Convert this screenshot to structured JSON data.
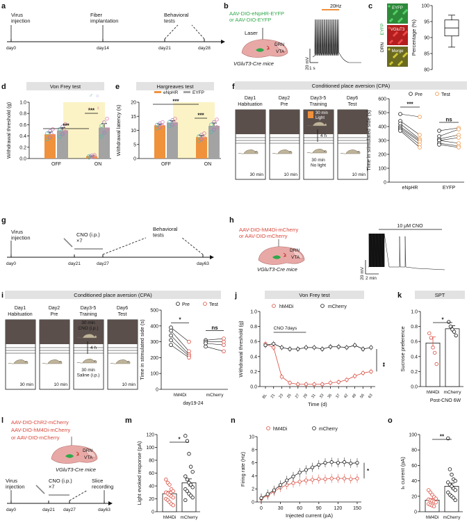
{
  "colors": {
    "orange": "#F0913C",
    "grey": "#A3A3A3",
    "red": "#D9483B",
    "green": "#2FA84A",
    "yellow": "#FBF3C6",
    "teal": "#58B7A8",
    "purple": "#9A7CC4",
    "pink": "#E07AB3",
    "cream": "#FFF6DA",
    "mouse": "#BFB49A"
  },
  "panels": [
    "a",
    "b",
    "c",
    "d",
    "e",
    "f",
    "g",
    "h",
    "i",
    "j",
    "k",
    "l",
    "m",
    "n",
    "o"
  ],
  "a": {
    "labels": [
      "Virus\ninjection",
      "Fiber\nimplantation",
      "Behavioral\ntests"
    ],
    "days": [
      "day0",
      "day14",
      "day21",
      "day28"
    ]
  },
  "b": {
    "virus1": "AAV-DIO-eNpHR-EYFP",
    "virus2": "or AAV-DIO-EYFP",
    "laser": "Laser",
    "drn": "DRN",
    "vta": "VTA",
    "mice": "VGluT3-Cre mice",
    "freq": "20Hz",
    "scale_v": "20 mV",
    "scale_t": "1 s"
  },
  "c": {
    "side": "DRN",
    "eyfp": "EYFP",
    "tiles": [
      "EYFP",
      "VGluT3",
      "Merge"
    ],
    "ylabel": "Percentage (%)",
    "ticks": [
      "80",
      "85",
      "90",
      "95",
      "100"
    ],
    "box": {
      "min": 87,
      "q1": 90.5,
      "median": 93,
      "q3": 95.5,
      "max": 97
    },
    "ylim": [
      80,
      100
    ]
  },
  "d": {
    "title": "Von Frey test",
    "ylabel": "Withdrawal threshold (g)",
    "yticks": [
      "0.0",
      "0.2",
      "0.4",
      "0.6",
      "0.8",
      "1.0"
    ],
    "xlabels": [
      "OFF",
      "ON"
    ],
    "sig": [
      "***",
      "***"
    ],
    "sex": [
      "♂",
      "○",
      "○",
      "♀"
    ],
    "ylim": [
      0,
      1.0
    ],
    "chart_data": {
      "type": "bar",
      "categories": [
        "OFF",
        "ON"
      ],
      "series": [
        {
          "name": "eNpHR",
          "values": [
            0.43,
            0.04
          ],
          "err": [
            0.04,
            0.01
          ]
        },
        {
          "name": "EYFP",
          "values": [
            0.5,
            0.55
          ],
          "err": [
            0.05,
            0.07
          ]
        }
      ]
    }
  },
  "e": {
    "title": "Hargreaves test",
    "ylabel": "Withdrawal latency (s)",
    "yticks": [
      "0",
      "5",
      "10",
      "15",
      "20"
    ],
    "xlabels": [
      "OFF",
      "ON"
    ],
    "legend": [
      "eNpHR",
      "EYFP"
    ],
    "sig": [
      "***",
      "***"
    ],
    "ylim": [
      0,
      20
    ],
    "chart_data": {
      "type": "bar",
      "categories": [
        "OFF",
        "ON"
      ],
      "series": [
        {
          "name": "eNpHR",
          "values": [
            11.8,
            7.6
          ],
          "err": [
            0.5,
            0.6
          ]
        },
        {
          "name": "EYFP",
          "values": [
            12.8,
            11.6
          ],
          "err": [
            0.6,
            1.0
          ]
        }
      ]
    }
  },
  "f": {
    "title": "Conditioned place aversion (CPA)",
    "days": [
      {
        "name": "Day1",
        "sub": "Habituation",
        "time": "30 min"
      },
      {
        "name": "Day2",
        "sub": "Pre",
        "time": "10 min"
      },
      {
        "name": "Day3-5",
        "sub": "Training",
        "time": ""
      },
      {
        "name": "Day6",
        "sub": "Test",
        "time": "10 min"
      }
    ],
    "light": "30 min\nLight",
    "gap": "4 h",
    "nolight": "30 min\nNo light",
    "legend": [
      "Pre",
      "Test"
    ],
    "ylabel": "Time in stimulated side (s)",
    "yticks": [
      "0",
      "100",
      "200",
      "300",
      "400",
      "500",
      "600"
    ],
    "xlabels": [
      "eNpHR",
      "EYFP"
    ],
    "sig": [
      "***",
      "ns"
    ],
    "ylim": [
      0,
      600
    ],
    "chart_data": {
      "type": "scatter",
      "groups": [
        {
          "name": "eNpHR",
          "pre": [
            490,
            440,
            420,
            400,
            390,
            380,
            370
          ],
          "test": [
            470,
            340,
            310,
            300,
            290,
            270,
            250
          ]
        },
        {
          "name": "EYFP",
          "pre": [
            370,
            330,
            310,
            300,
            300,
            280,
            270
          ],
          "test": [
            390,
            380,
            340,
            320,
            280,
            260,
            250
          ]
        }
      ]
    }
  },
  "g": {
    "labels": [
      "Virus\ninjection",
      "CNO (i.p.)\n×7",
      "Behavioral\ntests"
    ],
    "days": [
      "day0",
      "day21",
      "day27",
      "day63"
    ]
  },
  "h": {
    "virus1": "AAV-DIO-hM4Di-mCherry",
    "virus2": "or AAV-DIO-mCherry",
    "drn": "DRN",
    "vta": "VTA",
    "mice": "VGluT3-Cre mice",
    "cno": "10 μM CNO",
    "scale_v": "20 mV",
    "scale_t": "2 min"
  },
  "i": {
    "title": "Conditioned place aversion (CPA)",
    "days": [
      {
        "name": "Day1",
        "sub": "Habituation",
        "time": "30 min"
      },
      {
        "name": "Day2",
        "sub": "Pre",
        "time": "10 min"
      },
      {
        "name": "Day3-5",
        "sub": "Training",
        "time": ""
      },
      {
        "name": "Day6",
        "sub": "Test",
        "time": "10 min"
      }
    ],
    "cno": "30 min\nCNO (i.p.)",
    "gap": "4 h",
    "saline": "30 min\nSaline (i.p.)",
    "legend": [
      "Pre",
      "Test"
    ],
    "ylabel": "Time in stimulated side (s)",
    "yticks": [
      "0",
      "100",
      "200",
      "300",
      "400",
      "500"
    ],
    "xlabels": [
      "hM4Di",
      "mCherry"
    ],
    "sub": "day19-24",
    "sig": [
      "*",
      "ns"
    ],
    "ylim": [
      0,
      500
    ],
    "chart_data": {
      "type": "scatter",
      "groups": [
        {
          "name": "hM4Di",
          "pre": [
            390,
            370,
            340,
            310,
            280
          ],
          "test": [
            300,
            240,
            220,
            210,
            200
          ]
        },
        {
          "name": "mCherry",
          "pre": [
            310,
            300,
            290,
            270
          ],
          "test": [
            320,
            300,
            280,
            240
          ]
        }
      ]
    }
  },
  "j": {
    "title": "Von Frey test",
    "legend": [
      "hM4Di",
      "mCherry"
    ],
    "cno": "CNO 7days",
    "ylabel": "Withdrawal threshold (g)",
    "yticks": [
      "0.0",
      "0.2",
      "0.4",
      "0.6",
      "0.8",
      "1.0"
    ],
    "xlabel": "Time (d)",
    "xticks": [
      "BL",
      "21",
      "23",
      "25",
      "27",
      "29",
      "31",
      "33",
      "35",
      "37",
      "42",
      "49",
      "56",
      "63"
    ],
    "sig": "**",
    "ylim": [
      0,
      1.0
    ],
    "chart_data": {
      "type": "line",
      "x": [
        "BL",
        "21",
        "23",
        "25",
        "27",
        "29",
        "31",
        "33",
        "35",
        "37",
        "42",
        "49",
        "56",
        "63"
      ],
      "series": [
        {
          "name": "hM4Di",
          "values": [
            0.57,
            0.52,
            0.13,
            0.05,
            0.03,
            0.03,
            0.03,
            0.03,
            0.05,
            0.06,
            0.09,
            0.14,
            0.18,
            0.2
          ]
        },
        {
          "name": "mCherry",
          "values": [
            0.55,
            0.57,
            0.52,
            0.5,
            0.5,
            0.52,
            0.52,
            0.5,
            0.53,
            0.53,
            0.52,
            0.55,
            0.5,
            0.52
          ]
        }
      ]
    }
  },
  "k": {
    "title": "SPT",
    "ylabel": "Sucrose preference",
    "yticks": [
      "0.0",
      "0.2",
      "0.4",
      "0.6",
      "0.8",
      "1.0"
    ],
    "xlabels": [
      "hM4Di",
      "mCherry"
    ],
    "sub": "Post-CNO 6W",
    "sig": "*",
    "ylim": [
      0,
      1.0
    ],
    "chart_data": {
      "type": "bar",
      "categories": [
        "hM4Di",
        "mCherry"
      ],
      "values": [
        0.58,
        0.77
      ],
      "err": [
        0.08,
        0.04
      ],
      "points": [
        [
          0.71,
          0.65,
          0.52,
          0.45,
          0.3
        ],
        [
          0.86,
          0.8,
          0.76,
          0.73,
          0.68
        ]
      ]
    }
  },
  "l": {
    "virus1": "AAV-DIO-ChR2-mCherry",
    "virus2": "AAV-DIO-hM4Di-mCherry",
    "virus3": "or AAV-DIO-mCherry",
    "drn": "DRN",
    "vta": "VTA",
    "mice": "VGluT3-Cre mice",
    "labels": [
      "Virus\ninjection",
      "CNO (i.p.)\n×7",
      "Slice\nrecording"
    ],
    "days": [
      "day0",
      "day21",
      "day27",
      "day63"
    ]
  },
  "m": {
    "ylabel": "Light evoked response (pA)",
    "yticks": [
      "0",
      "20",
      "40",
      "60",
      "80",
      "100",
      "120"
    ],
    "xlabels": [
      "hM4Di",
      "mCherry"
    ],
    "sig": "*",
    "ylim": [
      0,
      120
    ],
    "chart_data": {
      "type": "bar",
      "categories": [
        "hM4Di",
        "mCherry"
      ],
      "values": [
        28,
        45
      ],
      "err": [
        4,
        6
      ],
      "points": [
        [
          50,
          45,
          42,
          35,
          32,
          30,
          28,
          26,
          24,
          22,
          20,
          18,
          15,
          12,
          10
        ],
        [
          118,
          110,
          90,
          70,
          62,
          55,
          50,
          45,
          42,
          38,
          35,
          32,
          28,
          25,
          22,
          18
        ]
      ]
    }
  },
  "n": {
    "legend": [
      "hM4Di",
      "mCherry"
    ],
    "ylabel": "Firing rate (Hz)",
    "yticks": [
      "0",
      "2",
      "4",
      "6",
      "8",
      "10"
    ],
    "xlabel": "Injected current (pA)",
    "xticks": [
      "0",
      "30",
      "60",
      "90",
      "120",
      "150"
    ],
    "sig": "*",
    "ylim": [
      0,
      10
    ],
    "chart_data": {
      "type": "line",
      "x": [
        0,
        10,
        20,
        30,
        40,
        50,
        60,
        70,
        80,
        90,
        100,
        110,
        120,
        130,
        140,
        150
      ],
      "series": [
        {
          "name": "hM4Di",
          "values": [
            0.5,
            1.0,
            1.6,
            2.2,
            2.6,
            2.9,
            3.1,
            3.3,
            3.4,
            3.5,
            3.5,
            3.6,
            3.6,
            3.6,
            3.5,
            3.6
          ]
        },
        {
          "name": "mCherry",
          "values": [
            0.6,
            1.2,
            1.8,
            2.6,
            3.3,
            3.9,
            4.5,
            4.9,
            5.3,
            5.7,
            6.0,
            6.1,
            6.0,
            6.1,
            5.9,
            6.0
          ]
        }
      ]
    }
  },
  "o": {
    "ylabel": "Iₕ current (pA)",
    "yticks": [
      "0",
      "20",
      "40",
      "60",
      "80",
      "100"
    ],
    "xlabels": [
      "hM4Di",
      "mCherry"
    ],
    "sig": "**",
    "ylim": [
      0,
      100
    ],
    "chart_data": {
      "type": "bar",
      "categories": [
        "hM4Di",
        "mCherry"
      ],
      "values": [
        15,
        33
      ],
      "err": [
        2,
        4
      ],
      "points": [
        [
          28,
          25,
          22,
          19,
          17,
          16,
          15,
          14,
          13,
          12,
          10,
          9,
          8,
          7
        ],
        [
          95,
          55,
          48,
          42,
          40,
          38,
          35,
          33,
          30,
          28,
          25,
          22,
          20,
          18,
          15
        ]
      ]
    }
  }
}
